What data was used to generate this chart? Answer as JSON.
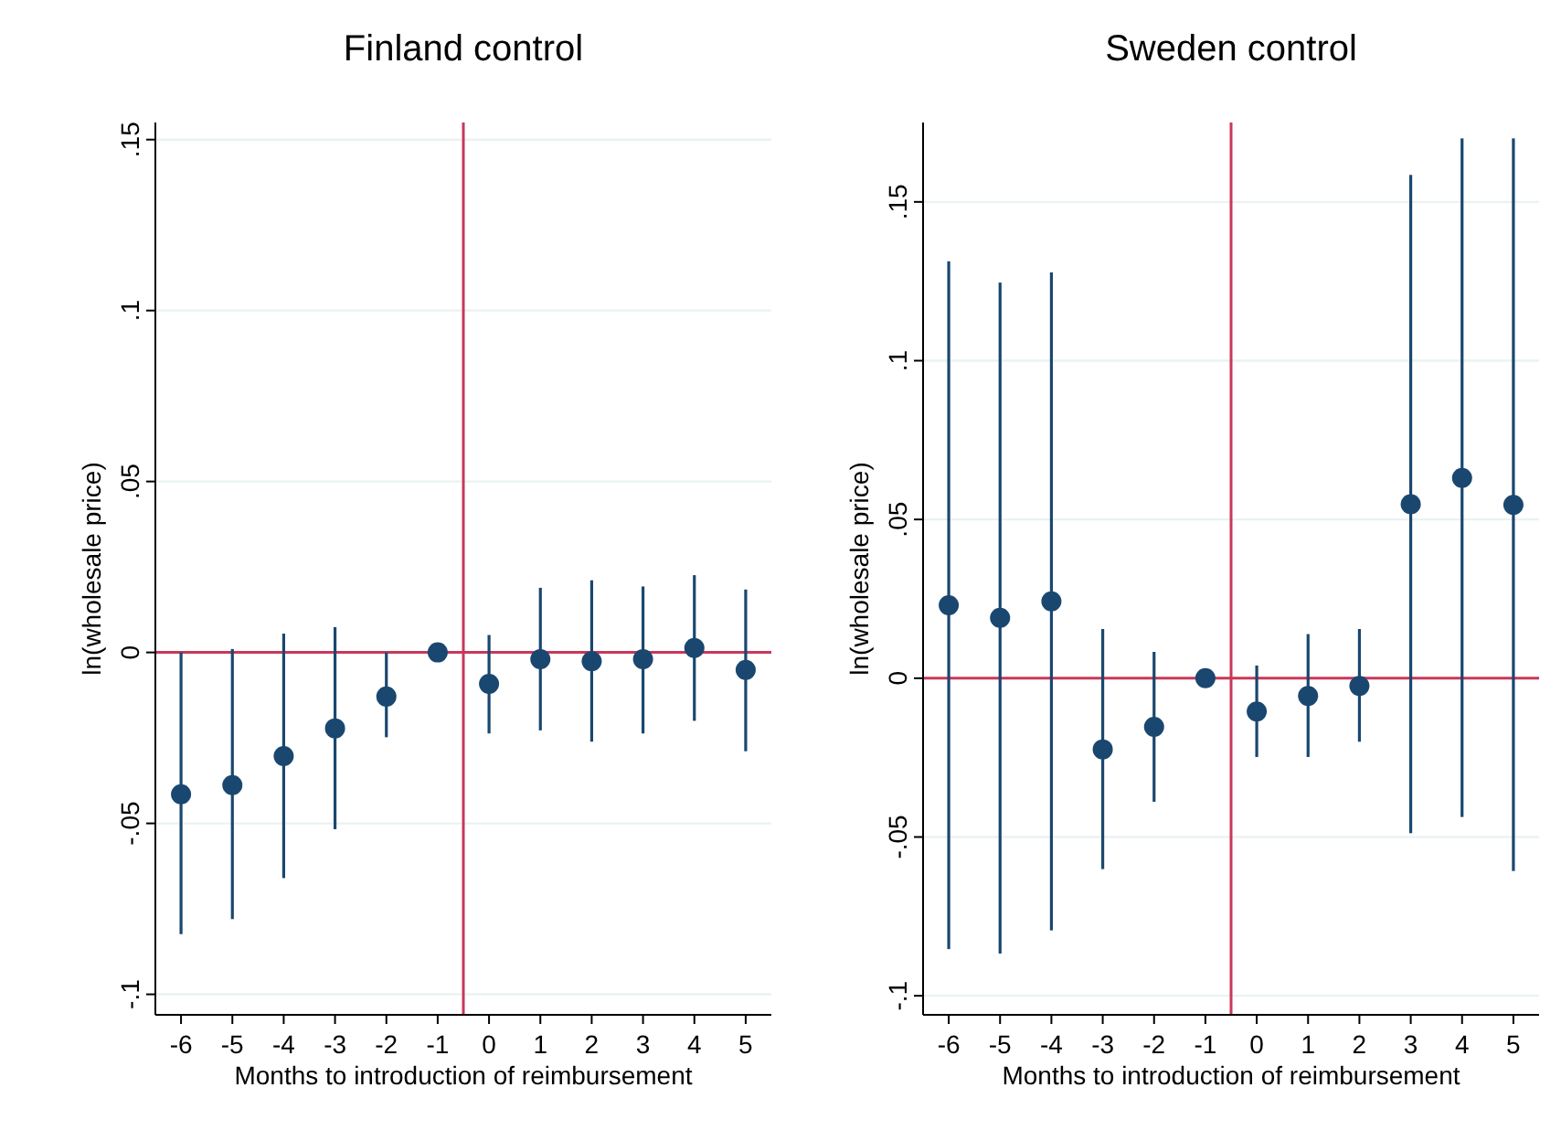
{
  "chart_data": [
    {
      "type": "scatter",
      "title": "Finland control",
      "xlabel": "Months to introduction of reimbursement",
      "ylabel": "ln(wholesale price)",
      "x": [
        -6,
        -5,
        -4,
        -3,
        -2,
        -1,
        0,
        1,
        2,
        3,
        4,
        5
      ],
      "series": [
        {
          "color": "#1a476f",
          "values": [
            -0.0415,
            -0.0388,
            -0.0303,
            -0.0222,
            -0.0129,
            0,
            -0.0092,
            -0.002,
            -0.0026,
            -0.002,
            0.0013,
            -0.0051
          ],
          "errors": [
            [
              -0.0824,
              0
            ],
            [
              -0.078,
              0.001
            ],
            [
              -0.066,
              0.0055
            ],
            [
              -0.0517,
              0.0074
            ],
            [
              -0.0248,
              0
            ],
            null,
            [
              -0.0237,
              0.0051
            ],
            [
              -0.0228,
              0.0189
            ],
            [
              -0.0261,
              0.0211
            ],
            [
              -0.0237,
              0.0193
            ],
            [
              -0.02,
              0.0226
            ],
            [
              -0.0289,
              0.0184
            ]
          ]
        }
      ],
      "xlim": [
        -6.5,
        5.5
      ],
      "ylim": [
        -0.106,
        0.155
      ],
      "xticks": [
        -6,
        -5,
        -4,
        -3,
        -2,
        -1,
        0,
        1,
        2,
        3,
        4,
        5
      ],
      "yticks": [
        {
          "value": -0.1,
          "label": "-.1"
        },
        {
          "value": -0.05,
          "label": "-.05"
        },
        0,
        {
          "value": 0.05,
          "label": ".05"
        },
        {
          "value": 0.1,
          "label": ".1"
        },
        {
          "value": 0.15,
          "label": ".15"
        }
      ],
      "grid": "y",
      "marker": "circle",
      "ref_lines": [
        {
          "axis": "x",
          "value": -0.5,
          "color": "#c8385a"
        },
        {
          "axis": "y",
          "value": 0,
          "color": "#c8385a"
        }
      ]
    },
    {
      "type": "scatter",
      "title": "Sweden control",
      "xlabel": "Months to introduction of reimbursement",
      "ylabel": "ln(wholesale price)",
      "x": [
        -6,
        -5,
        -4,
        -3,
        -2,
        -1,
        0,
        1,
        2,
        3,
        4,
        5
      ],
      "series": [
        {
          "color": "#1a476f",
          "values": [
            0.023,
            0.019,
            0.0242,
            -0.0224,
            -0.0153,
            0,
            -0.0105,
            -0.0056,
            -0.0024,
            0.0548,
            0.0631,
            0.0546
          ],
          "errors": [
            [
              -0.0853,
              0.1313
            ],
            [
              -0.0867,
              0.1246
            ],
            [
              -0.0794,
              0.1278
            ],
            [
              -0.0601,
              0.0155
            ],
            [
              -0.0389,
              0.0083
            ],
            null,
            [
              -0.0248,
              0.004
            ],
            [
              -0.0248,
              0.0139
            ],
            [
              -0.02,
              0.0155
            ],
            [
              -0.0488,
              0.1585
            ],
            [
              -0.0437,
              0.17
            ],
            [
              -0.0607,
              0.17
            ]
          ]
        }
      ],
      "xlim": [
        -6.5,
        5.5
      ],
      "ylim": [
        -0.106,
        0.175
      ],
      "xticks": [
        -6,
        -5,
        -4,
        -3,
        -2,
        -1,
        0,
        1,
        2,
        3,
        4,
        5
      ],
      "yticks": [
        {
          "value": -0.1,
          "label": "-.1"
        },
        {
          "value": -0.05,
          "label": "-.05"
        },
        0,
        {
          "value": 0.05,
          "label": ".05"
        },
        {
          "value": 0.1,
          "label": ".1"
        },
        {
          "value": 0.15,
          "label": ".15"
        }
      ],
      "grid": "y",
      "marker": "circle",
      "ref_lines": [
        {
          "axis": "x",
          "value": -0.5,
          "color": "#c8385a"
        },
        {
          "axis": "y",
          "value": 0,
          "color": "#c8385a"
        }
      ]
    }
  ]
}
